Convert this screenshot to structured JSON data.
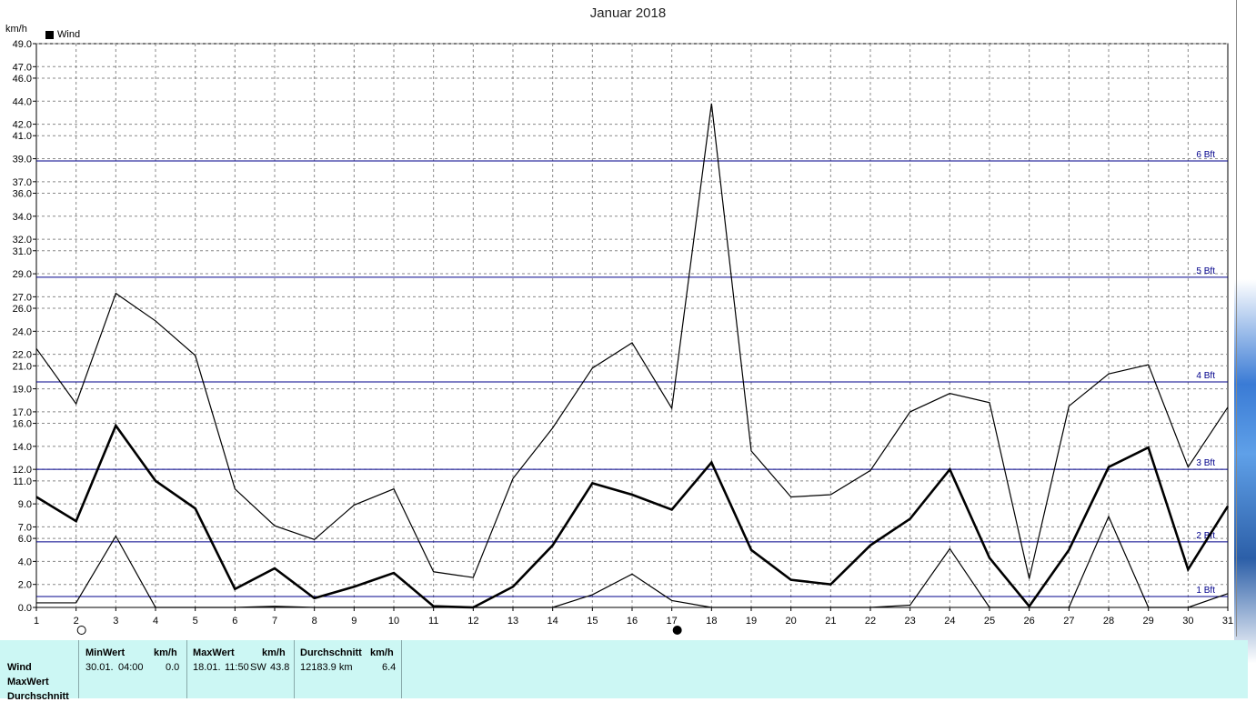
{
  "title": "Januar 2018",
  "unit": "km/h",
  "legend": {
    "label": "Wind",
    "color": "#000000"
  },
  "colors": {
    "grid": "#888888",
    "beaufort": "#00008b",
    "series": "#000000",
    "panel": "#ccf7f4"
  },
  "chart_data": {
    "type": "line",
    "title": "Januar 2018",
    "ylabel": "km/h",
    "xlabel": "",
    "ylim": [
      0,
      49
    ],
    "xlim": [
      1,
      31
    ],
    "x_ticks": [
      1,
      2,
      3,
      4,
      5,
      6,
      7,
      8,
      9,
      10,
      11,
      12,
      13,
      14,
      15,
      16,
      17,
      18,
      19,
      20,
      21,
      22,
      23,
      24,
      25,
      26,
      27,
      28,
      29,
      30,
      31
    ],
    "y_ticks": [
      "0.0",
      "2.0",
      "4.0",
      "6.0",
      "7.0",
      "9.0",
      "11.0",
      "12.0",
      "14.0",
      "16.0",
      "17.0",
      "19.0",
      "21.0",
      "22.0",
      "24.0",
      "26.0",
      "27.0",
      "29.0",
      "31.0",
      "32.0",
      "34.0",
      "36.0",
      "37.0",
      "39.0",
      "41.0",
      "42.0",
      "44.0",
      "46.0",
      "47.0",
      "49.0"
    ],
    "grid": true,
    "legend_position": "top-left",
    "x": [
      1,
      2,
      3,
      4,
      5,
      6,
      7,
      8,
      9,
      10,
      11,
      12,
      13,
      14,
      15,
      16,
      17,
      18,
      19,
      20,
      21,
      22,
      23,
      24,
      25,
      26,
      27,
      28,
      29,
      30,
      31
    ],
    "series": [
      {
        "name": "MaxWert",
        "width": 1.2,
        "values": [
          22.5,
          17.7,
          27.3,
          24.9,
          21.9,
          10.3,
          7.1,
          5.9,
          8.9,
          10.3,
          3.1,
          2.6,
          11.2,
          15.6,
          20.8,
          23.0,
          17.3,
          43.8,
          13.6,
          9.6,
          9.8,
          11.9,
          17.0,
          18.6,
          17.8,
          2.5,
          17.5,
          20.3,
          21.1,
          12.2,
          17.4
        ]
      },
      {
        "name": "Wind",
        "width": 2.6,
        "values": [
          9.6,
          7.5,
          15.8,
          11.0,
          8.6,
          1.6,
          3.4,
          0.8,
          1.8,
          3.0,
          0.1,
          0.0,
          1.8,
          5.4,
          10.8,
          9.8,
          8.5,
          12.6,
          5.0,
          2.4,
          2.0,
          5.4,
          7.7,
          12.0,
          4.3,
          0.1,
          5.0,
          12.2,
          13.9,
          3.3,
          8.8
        ]
      },
      {
        "name": "MinWert",
        "width": 1.2,
        "values": [
          0.4,
          0.4,
          6.2,
          0.0,
          0.0,
          0.0,
          0.1,
          0.0,
          0.0,
          0.0,
          0.0,
          0.0,
          0.0,
          0.0,
          1.1,
          2.9,
          0.6,
          0.0,
          0.0,
          0.0,
          0.0,
          0.0,
          0.2,
          5.1,
          0.0,
          0.0,
          0.0,
          7.9,
          0.0,
          0.0,
          1.2
        ]
      }
    ],
    "beaufort_lines": [
      {
        "label": "1 Bft",
        "value": 0.95
      },
      {
        "label": "2 Bft",
        "value": 5.7
      },
      {
        "label": "3 Bft",
        "value": 12.0
      },
      {
        "label": "4 Bft",
        "value": 19.6
      },
      {
        "label": "5 Bft",
        "value": 28.7
      },
      {
        "label": "6 Bft",
        "value": 38.8
      }
    ],
    "moon_markers": [
      {
        "day": 2,
        "phase": "full"
      },
      {
        "day": 17,
        "phase": "new"
      }
    ]
  },
  "stats": {
    "row_labels": [
      "Wind",
      "MaxWert",
      "Durchschnitt"
    ],
    "min": {
      "header": "MinWert",
      "unit": "km/h",
      "date": "30.01.",
      "time": "04:00",
      "value": "0.0"
    },
    "max": {
      "header": "MaxWert",
      "unit": "km/h",
      "date": "18.01.",
      "time": "11:50",
      "dir": "SW",
      "value": "43.8"
    },
    "avg": {
      "header": "Durchschnitt",
      "unit": "km/h",
      "distance": "12183.9 km",
      "value": "6.4"
    }
  }
}
